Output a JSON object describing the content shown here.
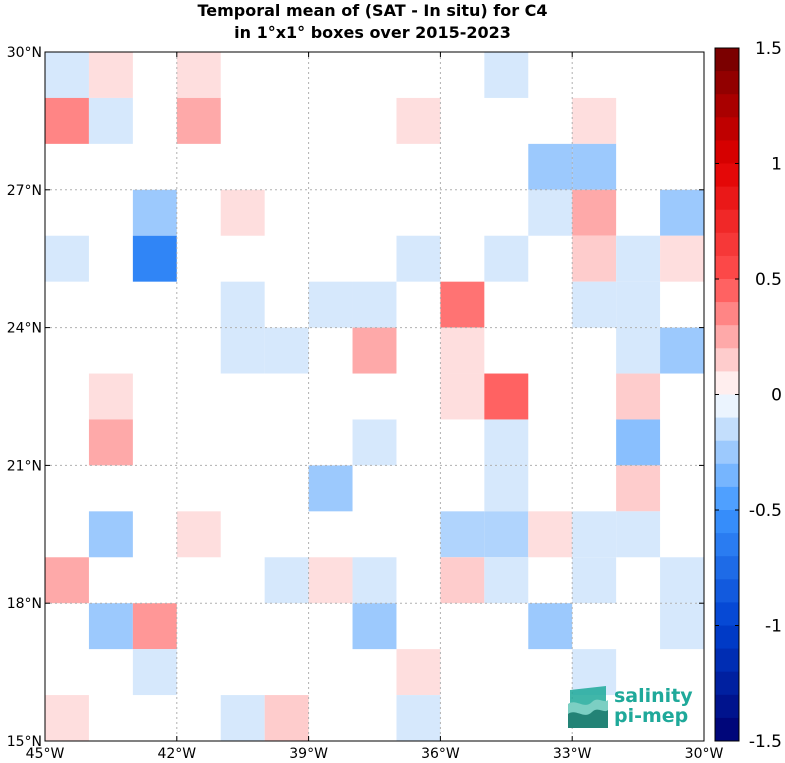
{
  "chart_data": {
    "type": "heatmap",
    "title_lines": [
      "Temporal mean of (SAT - In situ) for C4",
      "in 1°x1° boxes over 2015-2023"
    ],
    "x_ticks": [
      "45°W",
      "42°W",
      "39°W",
      "36°W",
      "33°W",
      "30°W"
    ],
    "y_ticks": [
      "15°N",
      "18°N",
      "21°N",
      "24°N",
      "27°N",
      "30°N"
    ],
    "xlim": [
      -45,
      -30
    ],
    "ylim": [
      15,
      30
    ],
    "grid": true,
    "colorbar": {
      "range": [
        -1.5,
        1.5
      ],
      "tick_labels": [
        "1.5",
        "1",
        "0.5",
        "0",
        "-0.5",
        "-1",
        "-1.5"
      ],
      "tick_values": [
        1.5,
        1.0,
        0.5,
        0.0,
        -0.5,
        -1.0,
        -1.5
      ]
    },
    "cells": [
      {
        "lon": -45,
        "lat": 29,
        "value": -0.1
      },
      {
        "lon": -44,
        "lat": 29,
        "value": 0.1
      },
      {
        "lon": -42,
        "lat": 29,
        "value": 0.1
      },
      {
        "lon": -35,
        "lat": 29,
        "value": -0.1
      },
      {
        "lon": -45,
        "lat": 28,
        "value": 0.35
      },
      {
        "lon": -44,
        "lat": 28,
        "value": -0.1
      },
      {
        "lon": -42,
        "lat": 28,
        "value": 0.25
      },
      {
        "lon": -37,
        "lat": 28,
        "value": 0.1
      },
      {
        "lon": -33,
        "lat": 28,
        "value": 0.1
      },
      {
        "lon": -34,
        "lat": 27,
        "value": -0.25
      },
      {
        "lon": -33,
        "lat": 27,
        "value": -0.25
      },
      {
        "lon": -43,
        "lat": 26,
        "value": -0.25
      },
      {
        "lon": -41,
        "lat": 26,
        "value": 0.1
      },
      {
        "lon": -34,
        "lat": 26,
        "value": -0.1
      },
      {
        "lon": -33,
        "lat": 26,
        "value": 0.25
      },
      {
        "lon": -31,
        "lat": 26,
        "value": -0.25
      },
      {
        "lon": -45,
        "lat": 25,
        "value": -0.1
      },
      {
        "lon": -43,
        "lat": 25,
        "value": -0.6
      },
      {
        "lon": -37,
        "lat": 25,
        "value": -0.1
      },
      {
        "lon": -35,
        "lat": 25,
        "value": -0.1
      },
      {
        "lon": -33,
        "lat": 25,
        "value": 0.15
      },
      {
        "lon": -32,
        "lat": 25,
        "value": -0.1
      },
      {
        "lon": -31,
        "lat": 25,
        "value": 0.1
      },
      {
        "lon": -41,
        "lat": 24,
        "value": -0.1
      },
      {
        "lon": -39,
        "lat": 24,
        "value": -0.1
      },
      {
        "lon": -38,
        "lat": 24,
        "value": -0.1
      },
      {
        "lon": -36,
        "lat": 24,
        "value": 0.4
      },
      {
        "lon": -33,
        "lat": 24,
        "value": -0.1
      },
      {
        "lon": -32,
        "lat": 24,
        "value": -0.1
      },
      {
        "lon": -41,
        "lat": 23,
        "value": -0.1
      },
      {
        "lon": -40,
        "lat": 23,
        "value": -0.1
      },
      {
        "lon": -38,
        "lat": 23,
        "value": 0.25
      },
      {
        "lon": -36,
        "lat": 23,
        "value": 0.1
      },
      {
        "lon": -32,
        "lat": 23,
        "value": -0.1
      },
      {
        "lon": -31,
        "lat": 23,
        "value": -0.25
      },
      {
        "lon": -44,
        "lat": 22,
        "value": 0.1
      },
      {
        "lon": -36,
        "lat": 22,
        "value": 0.1
      },
      {
        "lon": -35,
        "lat": 22,
        "value": 0.45
      },
      {
        "lon": -32,
        "lat": 22,
        "value": 0.15
      },
      {
        "lon": -44,
        "lat": 21,
        "value": 0.25
      },
      {
        "lon": -38,
        "lat": 21,
        "value": -0.1
      },
      {
        "lon": -35,
        "lat": 21,
        "value": -0.1
      },
      {
        "lon": -32,
        "lat": 21,
        "value": -0.3
      },
      {
        "lon": -39,
        "lat": 20,
        "value": -0.25
      },
      {
        "lon": -35,
        "lat": 20,
        "value": -0.1
      },
      {
        "lon": -32,
        "lat": 20,
        "value": 0.15
      },
      {
        "lon": -44,
        "lat": 19,
        "value": -0.25
      },
      {
        "lon": -42,
        "lat": 19,
        "value": 0.1
      },
      {
        "lon": -36,
        "lat": 19,
        "value": -0.2
      },
      {
        "lon": -35,
        "lat": 19,
        "value": -0.2
      },
      {
        "lon": -34,
        "lat": 19,
        "value": 0.1
      },
      {
        "lon": -33,
        "lat": 19,
        "value": -0.1
      },
      {
        "lon": -32,
        "lat": 19,
        "value": -0.1
      },
      {
        "lon": -45,
        "lat": 18,
        "value": 0.25
      },
      {
        "lon": -40,
        "lat": 18,
        "value": -0.1
      },
      {
        "lon": -39,
        "lat": 18,
        "value": 0.1
      },
      {
        "lon": -38,
        "lat": 18,
        "value": -0.1
      },
      {
        "lon": -36,
        "lat": 18,
        "value": 0.15
      },
      {
        "lon": -35,
        "lat": 18,
        "value": -0.1
      },
      {
        "lon": -33,
        "lat": 18,
        "value": -0.1
      },
      {
        "lon": -31,
        "lat": 18,
        "value": -0.1
      },
      {
        "lon": -44,
        "lat": 17,
        "value": -0.25
      },
      {
        "lon": -43,
        "lat": 17,
        "value": 0.3
      },
      {
        "lon": -38,
        "lat": 17,
        "value": -0.25
      },
      {
        "lon": -34,
        "lat": 17,
        "value": -0.25
      },
      {
        "lon": -31,
        "lat": 17,
        "value": -0.1
      },
      {
        "lon": -43,
        "lat": 16,
        "value": -0.1
      },
      {
        "lon": -37,
        "lat": 16,
        "value": 0.1
      },
      {
        "lon": -33,
        "lat": 16,
        "value": -0.1
      },
      {
        "lon": -45,
        "lat": 15,
        "value": 0.1
      },
      {
        "lon": -41,
        "lat": 15,
        "value": -0.1
      },
      {
        "lon": -40,
        "lat": 15,
        "value": 0.15
      },
      {
        "lon": -37,
        "lat": 15,
        "value": -0.1
      }
    ]
  },
  "logo": {
    "line1": "salinity",
    "line2": "pi-mep",
    "colors": [
      "#1fa99a",
      "#7ccfc3",
      "#0d6f63"
    ]
  }
}
